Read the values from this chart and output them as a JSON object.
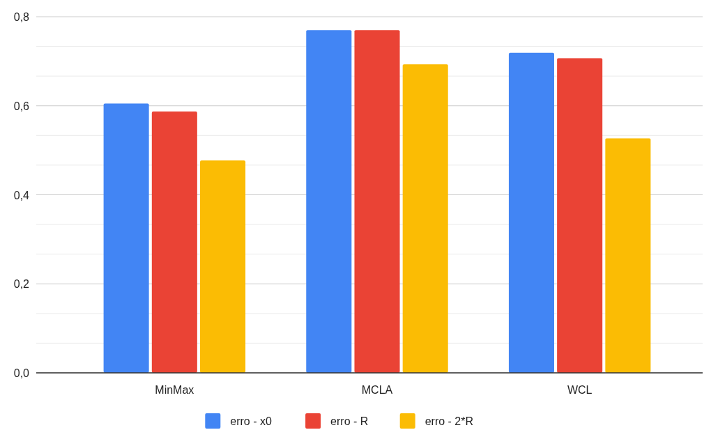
{
  "chart_data": {
    "type": "bar",
    "categories": [
      "MinMax",
      "MCLA",
      "WCL"
    ],
    "series": [
      {
        "name": "erro - x0",
        "color": "#4285f4",
        "values": [
          0.605,
          0.77,
          0.719
        ]
      },
      {
        "name": "erro - R",
        "color": "#ea4335",
        "values": [
          0.587,
          0.77,
          0.707
        ]
      },
      {
        "name": "erro - 2*R",
        "color": "#fbbc04",
        "values": [
          0.477,
          0.693,
          0.527
        ]
      }
    ],
    "ylim": [
      0,
      0.8
    ],
    "yticks": [
      {
        "value": 0,
        "label": "0,0"
      },
      {
        "value": 0.0667,
        "label": null
      },
      {
        "value": 0.1333,
        "label": null
      },
      {
        "value": 0.2,
        "label": "0,2"
      },
      {
        "value": 0.2667,
        "label": null
      },
      {
        "value": 0.3333,
        "label": null
      },
      {
        "value": 0.4,
        "label": "0,4"
      },
      {
        "value": 0.4667,
        "label": null
      },
      {
        "value": 0.5333,
        "label": null
      },
      {
        "value": 0.6,
        "label": "0,6"
      },
      {
        "value": 0.6667,
        "label": null
      },
      {
        "value": 0.7333,
        "label": null
      },
      {
        "value": 0.8,
        "label": "0,8"
      }
    ],
    "grid": true,
    "legend": "bottom"
  }
}
